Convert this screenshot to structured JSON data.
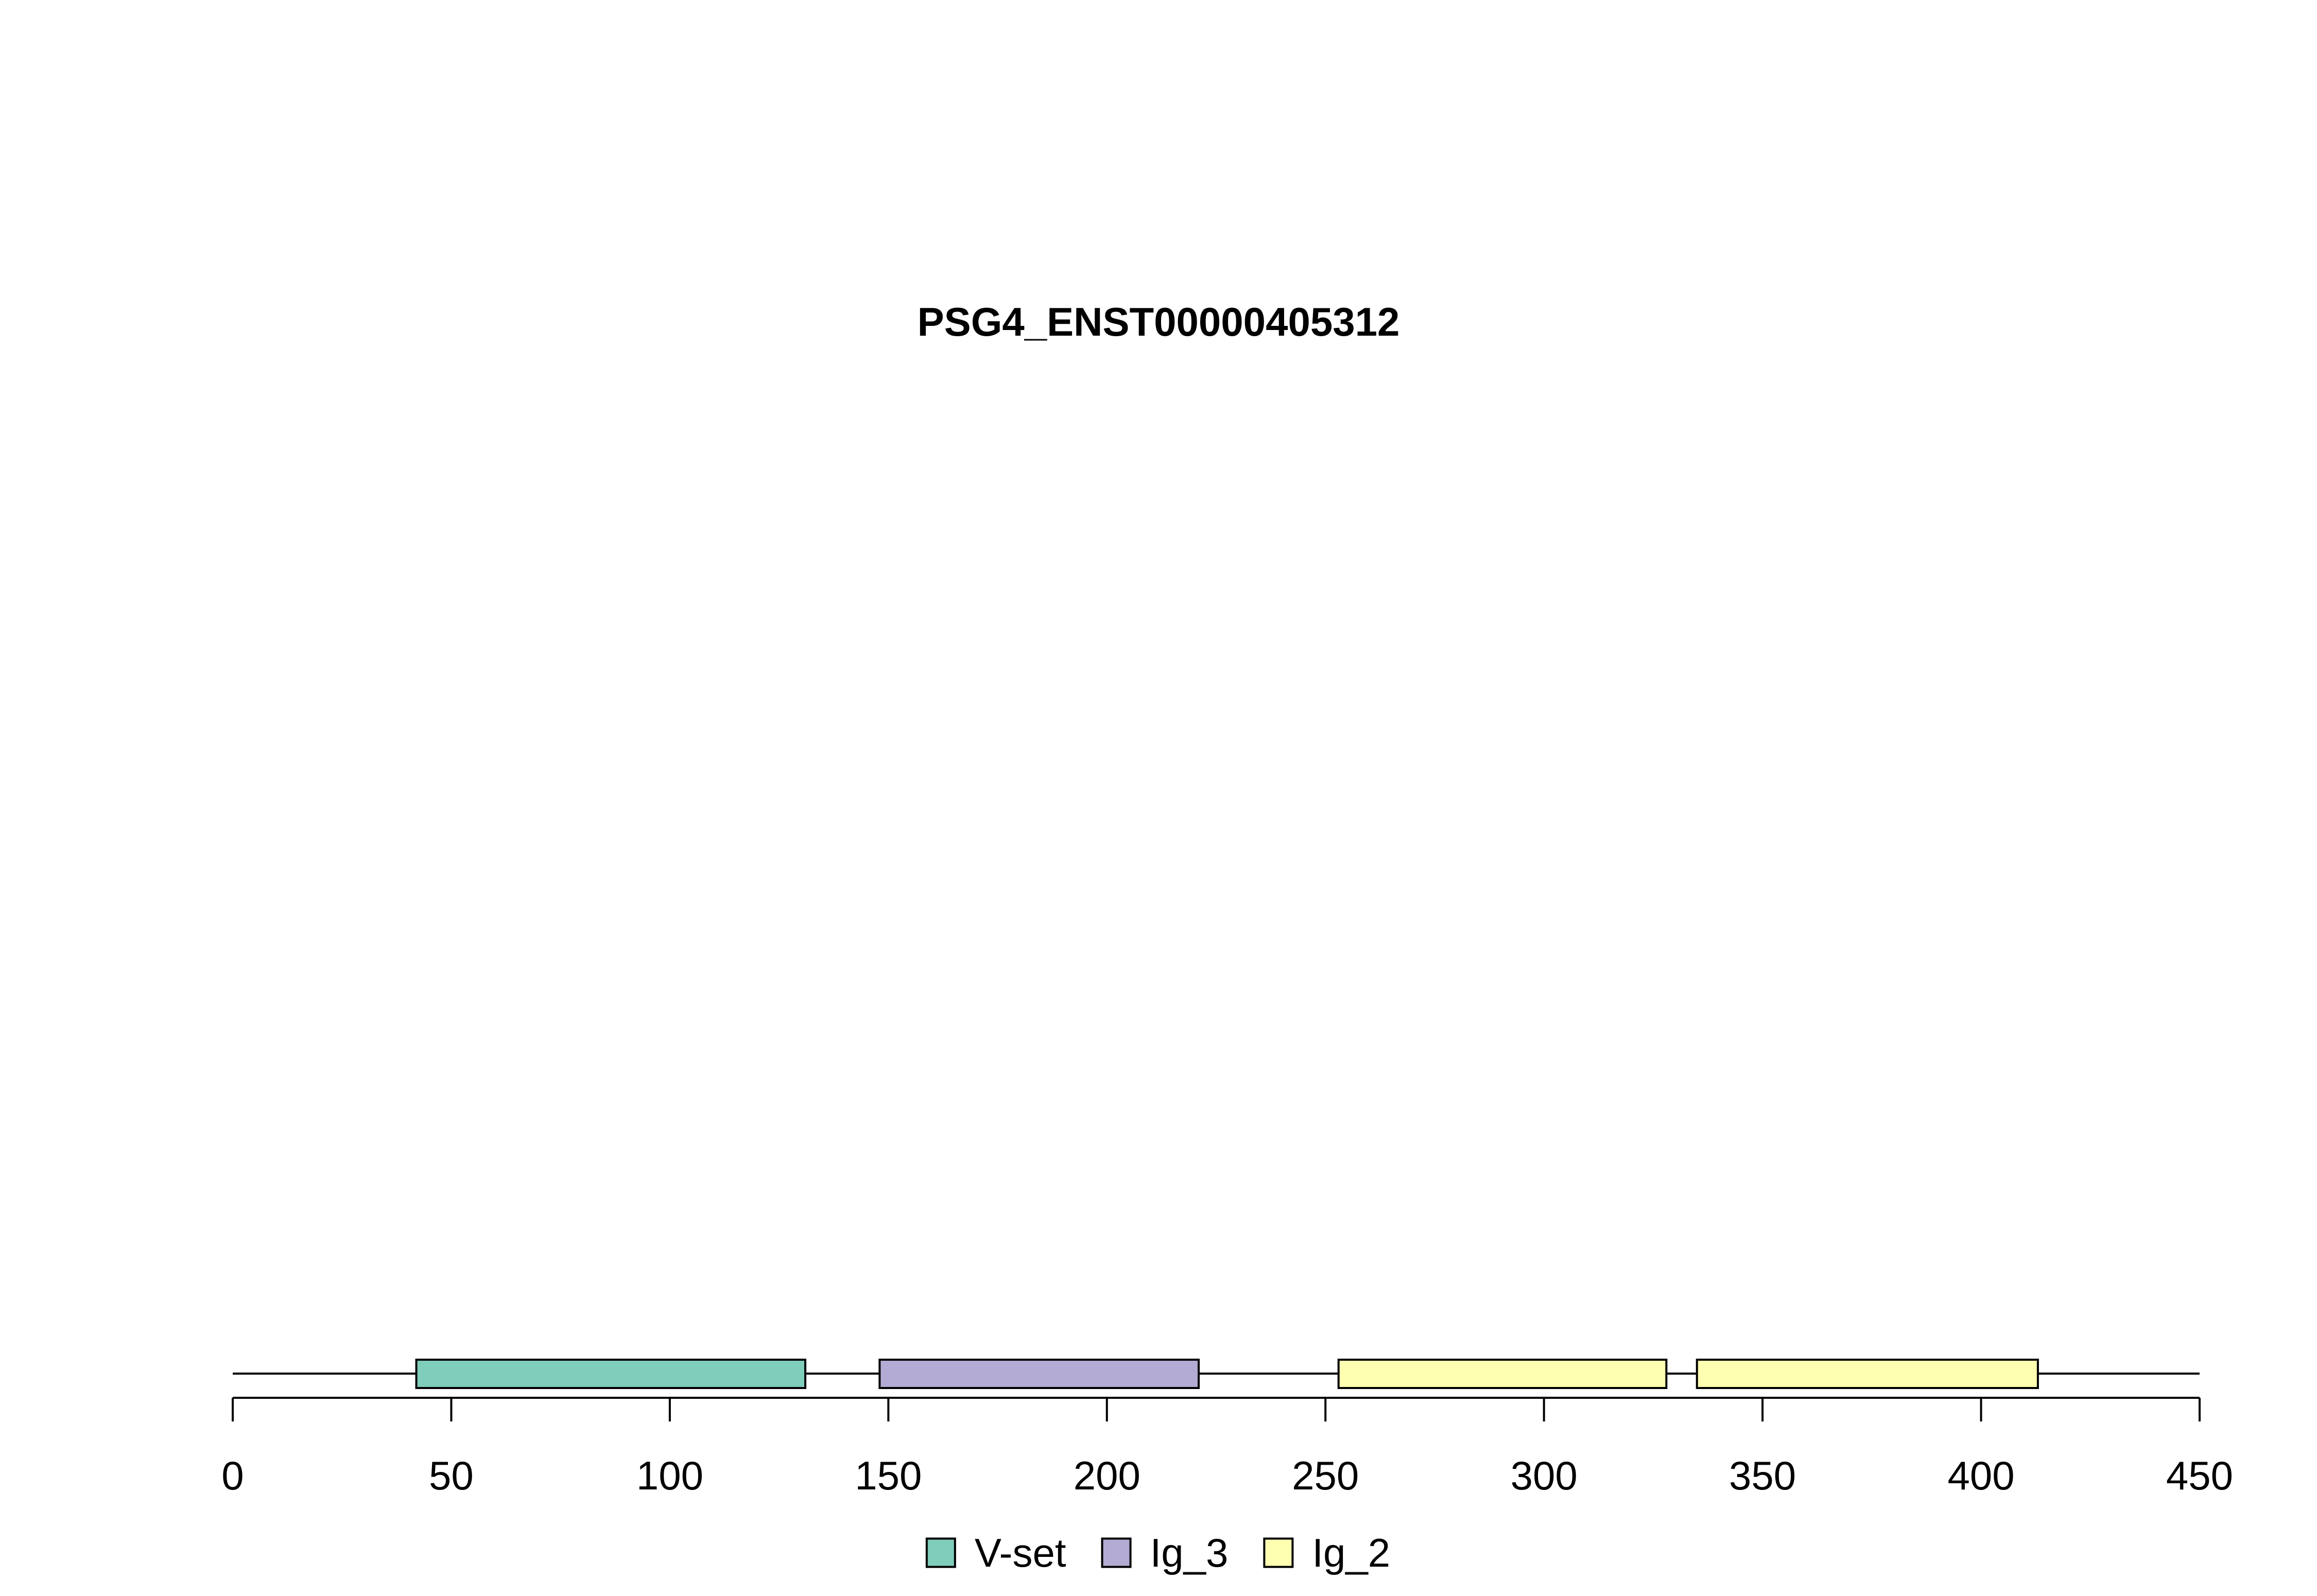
{
  "chart_data": {
    "type": "domain-map",
    "title": "PSG4_ENST00000405312",
    "protein_length": 450,
    "xlim": [
      0,
      450
    ],
    "ticks": [
      0,
      50,
      100,
      150,
      200,
      250,
      300,
      350,
      400,
      450
    ],
    "tick_labels": [
      "0",
      "50",
      "100",
      "150",
      "200",
      "250",
      "300",
      "350",
      "400",
      "450"
    ],
    "domains": [
      {
        "name": "V-set",
        "start": 42,
        "end": 131,
        "color": "#7FCDBB"
      },
      {
        "name": "Ig_3",
        "start": 148,
        "end": 221,
        "color": "#B3ABD3"
      },
      {
        "name": "Ig_2",
        "start": 253,
        "end": 328,
        "color": "#FFFFB2"
      },
      {
        "name": "Ig_2",
        "start": 335,
        "end": 413,
        "color": "#FFFFB2"
      }
    ],
    "legend": {
      "placement": "bottom-center",
      "entries": [
        {
          "name": "V-set",
          "color": "#7FCDBB"
        },
        {
          "name": "Ig_3",
          "color": "#B3ABD3"
        },
        {
          "name": "Ig_2",
          "color": "#FFFFB2"
        }
      ]
    }
  }
}
